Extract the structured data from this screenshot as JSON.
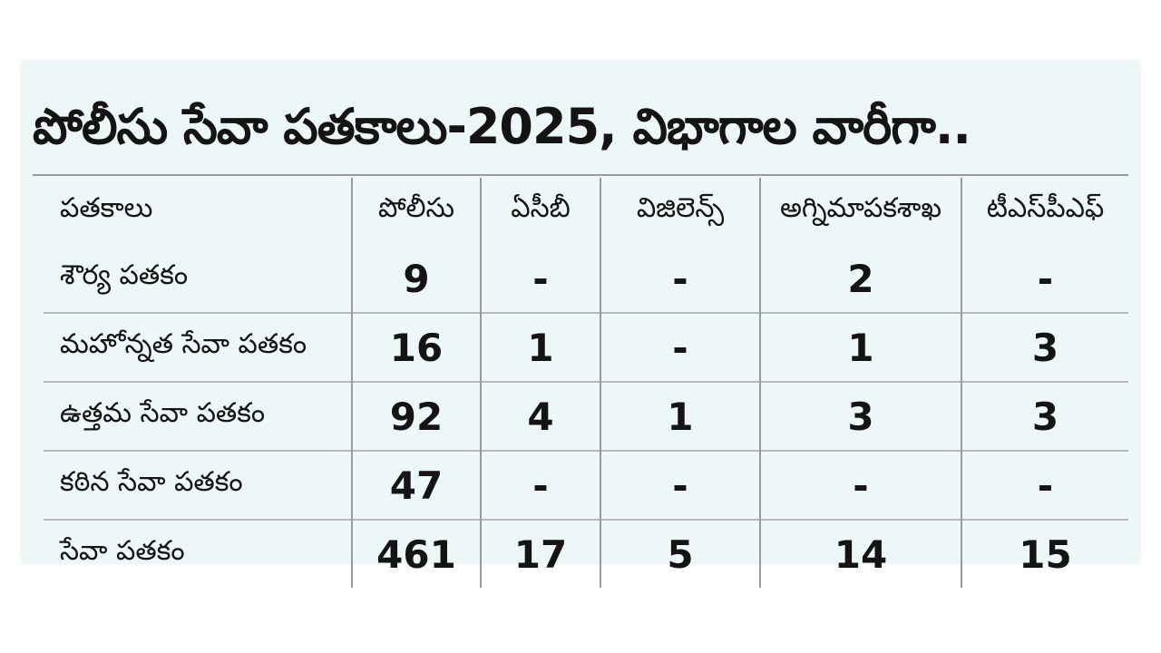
{
  "title": "పోలీసు సేవా పతకాలు-2025, విభాగాల వారీగా..",
  "table": {
    "headers": [
      "పతకాలు",
      "పోలీసు",
      "ఏసీబీ",
      "విజిలెన్స్",
      "అగ్నిమాపకశాఖ",
      "టీఎస్‌పీఎఫ్"
    ],
    "rows": [
      {
        "label": "శౌర్య పతకం",
        "values": [
          "9",
          "-",
          "-",
          "2",
          "-"
        ]
      },
      {
        "label": "మహోన్నత సేవా పతకం",
        "values": [
          "16",
          "1",
          "-",
          "1",
          "3"
        ]
      },
      {
        "label": "ఉత్తమ సేవా పతకం",
        "values": [
          "92",
          "4",
          "1",
          "3",
          "3"
        ]
      },
      {
        "label": "కఠిన సేవా పతకం",
        "values": [
          "47",
          "-",
          "-",
          "-",
          "-"
        ]
      },
      {
        "label": "సేవా పతకం",
        "values": [
          "461",
          "17",
          "5",
          "14",
          "15"
        ]
      }
    ]
  }
}
